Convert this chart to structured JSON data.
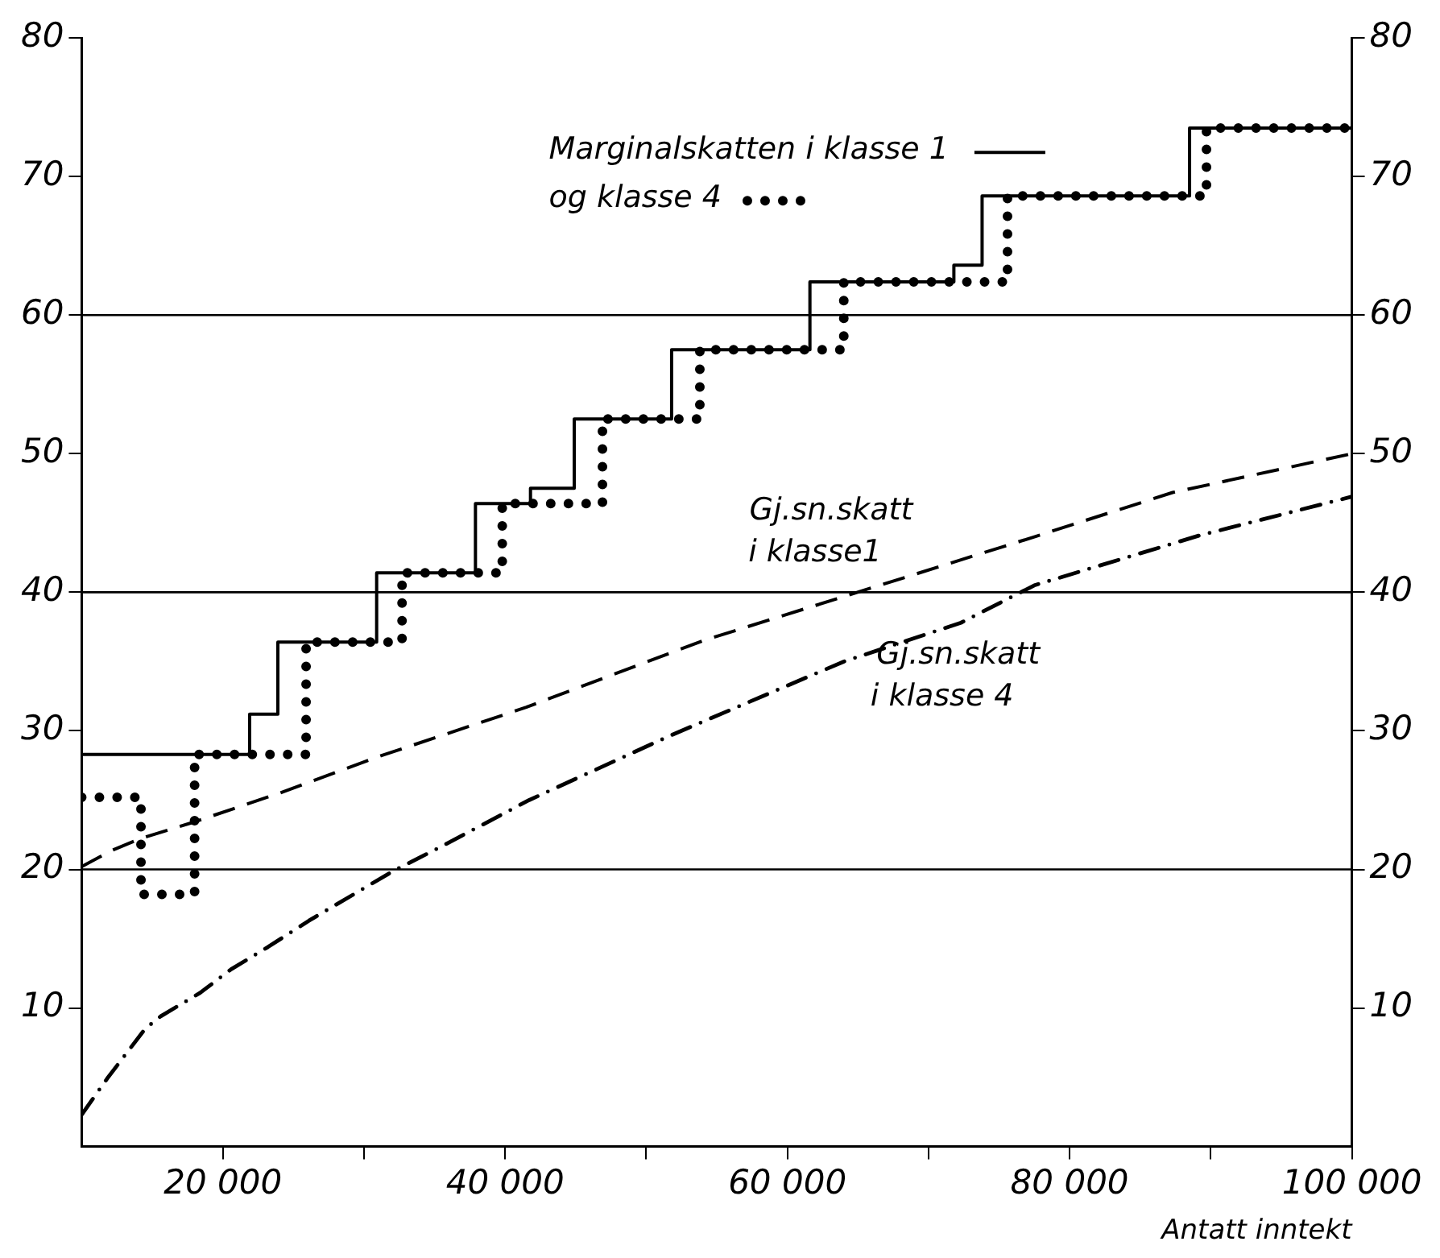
{
  "chart_data": {
    "type": "step",
    "xlabel": "Antatt inntekt",
    "xlim": [
      10000,
      100000
    ],
    "xticks": [
      {
        "value": 20000,
        "label": "20 000"
      },
      {
        "value": 30000,
        "label": null
      },
      {
        "value": 40000,
        "label": "40 000"
      },
      {
        "value": 50000,
        "label": null
      },
      {
        "value": 60000,
        "label": "60 000"
      },
      {
        "value": 70000,
        "label": null
      },
      {
        "value": 80000,
        "label": "80 000"
      },
      {
        "value": 90000,
        "label": null
      },
      {
        "value": 100000,
        "label": "100 000"
      }
    ],
    "ylim": [
      0,
      80
    ],
    "yticks": [
      10,
      20,
      30,
      40,
      50,
      60,
      70,
      80
    ],
    "y2lim": [
      0,
      80
    ],
    "y2ticks": [
      10,
      20,
      30,
      40,
      50,
      60,
      70,
      80
    ],
    "legend": "top",
    "series": [
      {
        "name": "Marginalskatten i klasse 1",
        "color": "#000000",
        "line_style": "solid",
        "x": [
          10000,
          21900,
          23900,
          30900,
          37900,
          41800,
          44900,
          51800,
          61600,
          71800,
          73800,
          88500,
          100000
        ],
        "values": [
          28.3,
          31.2,
          36.4,
          41.4,
          46.4,
          47.5,
          52.5,
          57.5,
          62.4,
          63.6,
          68.6,
          73.5,
          73.5
        ]
      },
      {
        "name": "og klasse 4",
        "color": "#000000",
        "line_style": "dotted",
        "x": [
          10000,
          14200,
          18000,
          25900,
          32700,
          39800,
          46900,
          53800,
          64000,
          75600,
          89700,
          100000
        ],
        "values": [
          25.2,
          18.2,
          28.3,
          36.4,
          41.4,
          46.4,
          52.5,
          57.5,
          62.4,
          68.6,
          73.5,
          73.5
        ]
      },
      {
        "type": "line",
        "color": "#000000",
        "line_style": "dashed",
        "x": [
          10000,
          12200,
          14100,
          17900,
          24000,
          31200,
          41500,
          54000,
          65600,
          77500,
          87300,
          100000
        ],
        "values": [
          20.2,
          21.4,
          22.2,
          23.4,
          25.5,
          28.2,
          31.7,
          36.5,
          40.2,
          44.0,
          47.2,
          50.0
        ]
      },
      {
        "type": "line",
        "color": "#000000",
        "line_style": "dashdot",
        "x": [
          10000,
          11800,
          14500,
          15600,
          18400,
          20600,
          23200,
          26100,
          32100,
          35200,
          41700,
          51800,
          64000,
          72300,
          77500,
          89200,
          100000
        ],
        "values": [
          2.3,
          4.9,
          8.5,
          9.4,
          11.1,
          12.8,
          14.4,
          16.3,
          19.9,
          21.5,
          25.0,
          29.7,
          35.0,
          37.8,
          40.5,
          44.1,
          46.9
        ]
      }
    ],
    "ref_lines": [
      {
        "axis": "y",
        "value": 20,
        "color": "#000000"
      },
      {
        "axis": "y",
        "value": 40,
        "color": "#000000"
      },
      {
        "axis": "y",
        "value": 60,
        "color": "#000000"
      }
    ],
    "annotations": [
      "Gj.sn.skatt\ni klasse1",
      "Gj.sn.skatt\ni klasse 4"
    ]
  }
}
